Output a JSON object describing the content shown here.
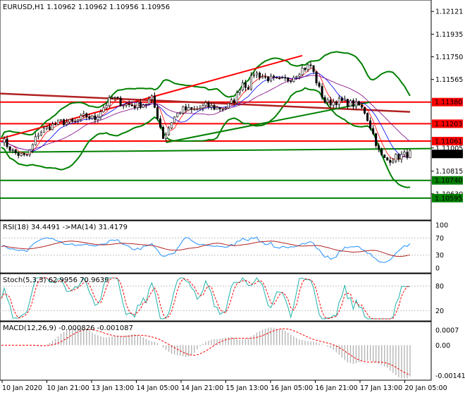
{
  "chart_data": {
    "symbol": "EURUSD",
    "timeframe": "H1",
    "header": "EURUSD,H1  1.10962 1.10962 1.10956 1.10956",
    "price_axis": {
      "ylim": [
        1.1045,
        1.1218
      ],
      "ticks": [
        "1.12121",
        "1.11935",
        "1.11750",
        "1.11565",
        "1.11005",
        "1.10815",
        "1.10630"
      ],
      "current": "1.10956"
    },
    "levels": [
      {
        "value": 1.1138,
        "label": "1.11380",
        "color": "#ff0000"
      },
      {
        "value": 1.11203,
        "label": "1.11203",
        "color": "#ff0000"
      },
      {
        "value": 1.11061,
        "label": "1.11061",
        "color": "#ff0000"
      },
      {
        "value": 1.1074,
        "label": "1.10740",
        "color": "#008000"
      },
      {
        "value": 1.10595,
        "label": "1.10595",
        "color": "#008000"
      }
    ],
    "time_labels": [
      "10 Jan 2020",
      "10 Jan 21:00",
      "13 Jan 13:00",
      "14 Jan 05:00",
      "14 Jan 21:00",
      "15 Jan 13:00",
      "16 Jan 05:00",
      "16 Jan 21:00",
      "17 Jan 13:00",
      "20 Jan 05:00"
    ],
    "price_path": [
      [
        0,
        1.1108
      ],
      [
        4,
        1.1097
      ],
      [
        8,
        1.1093
      ],
      [
        10,
        1.11
      ],
      [
        12,
        1.1112
      ],
      [
        16,
        1.1118
      ],
      [
        20,
        1.1122
      ],
      [
        24,
        1.1121
      ],
      [
        28,
        1.1127
      ],
      [
        31,
        1.1124
      ],
      [
        33,
        1.1131
      ],
      [
        37,
        1.1142
      ],
      [
        40,
        1.1137
      ],
      [
        44,
        1.1135
      ],
      [
        48,
        1.1137
      ],
      [
        50,
        1.1141
      ],
      [
        52,
        1.1126
      ],
      [
        54,
        1.1108
      ],
      [
        57,
        1.1124
      ],
      [
        60,
        1.1132
      ],
      [
        64,
        1.1131
      ],
      [
        68,
        1.1135
      ],
      [
        72,
        1.1133
      ],
      [
        75,
        1.1134
      ],
      [
        78,
        1.1141
      ],
      [
        80,
        1.1155
      ],
      [
        82,
        1.115
      ],
      [
        84,
        1.1162
      ],
      [
        88,
        1.1158
      ],
      [
        92,
        1.1155
      ],
      [
        96,
        1.1157
      ],
      [
        100,
        1.1165
      ],
      [
        103,
        1.1168
      ],
      [
        106,
        1.1147
      ],
      [
        108,
        1.1137
      ],
      [
        112,
        1.1139
      ],
      [
        116,
        1.1137
      ],
      [
        119,
        1.1135
      ],
      [
        121,
        1.113
      ],
      [
        124,
        1.111
      ],
      [
        126,
        1.1095
      ],
      [
        128,
        1.109
      ],
      [
        130,
        1.1092
      ],
      [
        133,
        1.1094
      ],
      [
        136,
        1.1096
      ]
    ],
    "indicators": [
      {
        "name": "RSI(18)",
        "value": "34.4491",
        "ma_label": "->MA(14)",
        "ma_value": "31.4179",
        "ylim": [
          0,
          100
        ],
        "ticks": [
          "100",
          "70",
          "30",
          "0"
        ]
      },
      {
        "name": "Stoch(5,3,3)",
        "value": "62.9956",
        "signal": "70.9639",
        "ylim": [
          0,
          100
        ],
        "ticks": [
          "80",
          "20"
        ]
      },
      {
        "name": "MACD(12,26,9)",
        "value": "-0.000826",
        "signal": "-0.001087",
        "ylim": [
          -0.0015,
          0.0009
        ],
        "ticks": [
          "0.0007",
          "0.00",
          "-0.001411"
        ]
      }
    ]
  }
}
